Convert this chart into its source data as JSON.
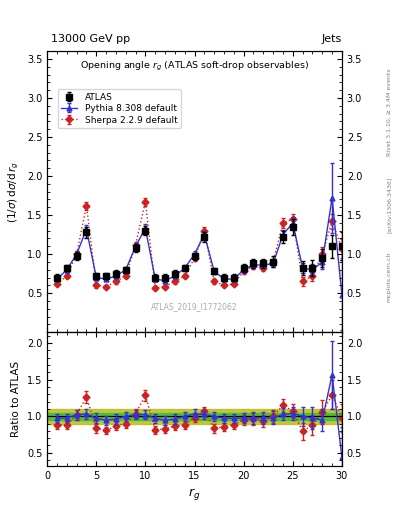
{
  "title_top_left": "13000 GeV pp",
  "title_top_right": "Jets",
  "plot_title": "Opening angle $r_g$ (ATLAS soft-drop observables)",
  "ylabel_main": "(1/σ) dσ/d r_g",
  "ylabel_ratio": "Ratio to ATLAS",
  "xlabel": "r_g",
  "watermark": "ATLAS_2019_I1772062",
  "rivet_text": "Rivet 3.1.10, ≥ 3.4M events",
  "arxiv_text": "[arXiv:1306.3436]",
  "mcplots_text": "mcplots.cern.ch",
  "x": [
    1,
    2,
    3,
    4,
    5,
    6,
    7,
    8,
    9,
    10,
    11,
    12,
    13,
    14,
    15,
    16,
    17,
    18,
    19,
    20,
    21,
    22,
    23,
    24,
    25,
    26,
    27,
    28,
    29,
    30
  ],
  "atlas_y": [
    0.7,
    0.82,
    0.98,
    1.28,
    0.72,
    0.72,
    0.75,
    0.8,
    1.08,
    1.3,
    0.7,
    0.7,
    0.75,
    0.82,
    0.97,
    1.22,
    0.78,
    0.7,
    0.7,
    0.82,
    0.88,
    0.88,
    0.9,
    1.22,
    1.35,
    0.82,
    0.82,
    0.95,
    1.1,
    1.1
  ],
  "atlas_yerr": [
    0.04,
    0.04,
    0.05,
    0.07,
    0.04,
    0.04,
    0.04,
    0.04,
    0.05,
    0.06,
    0.04,
    0.04,
    0.04,
    0.04,
    0.05,
    0.06,
    0.04,
    0.04,
    0.04,
    0.05,
    0.06,
    0.06,
    0.07,
    0.08,
    0.1,
    0.09,
    0.1,
    0.12,
    0.15,
    0.18
  ],
  "pythia_y": [
    0.68,
    0.8,
    1.0,
    1.32,
    0.7,
    0.68,
    0.72,
    0.8,
    1.1,
    1.33,
    0.68,
    0.66,
    0.72,
    0.82,
    1.0,
    1.25,
    0.78,
    0.68,
    0.68,
    0.8,
    0.86,
    0.86,
    0.88,
    1.25,
    1.4,
    0.82,
    0.8,
    0.9,
    1.72,
    0.48
  ],
  "pythia_yerr": [
    0.02,
    0.03,
    0.04,
    0.05,
    0.03,
    0.02,
    0.03,
    0.03,
    0.04,
    0.05,
    0.02,
    0.02,
    0.03,
    0.03,
    0.04,
    0.05,
    0.03,
    0.02,
    0.02,
    0.03,
    0.04,
    0.04,
    0.04,
    0.06,
    0.07,
    0.06,
    0.07,
    0.09,
    0.45,
    0.45
  ],
  "sherpa_y": [
    0.62,
    0.72,
    1.0,
    1.62,
    0.6,
    0.58,
    0.65,
    0.72,
    1.12,
    1.67,
    0.57,
    0.58,
    0.65,
    0.72,
    0.95,
    1.3,
    0.65,
    0.6,
    0.62,
    0.78,
    0.85,
    0.82,
    0.9,
    1.4,
    1.45,
    0.65,
    0.72,
    1.0,
    1.42,
    1.07
  ],
  "sherpa_yerr": [
    0.02,
    0.03,
    0.04,
    0.05,
    0.03,
    0.02,
    0.03,
    0.03,
    0.04,
    0.05,
    0.02,
    0.02,
    0.03,
    0.03,
    0.04,
    0.05,
    0.03,
    0.02,
    0.02,
    0.03,
    0.04,
    0.04,
    0.04,
    0.06,
    0.07,
    0.06,
    0.07,
    0.09,
    0.1,
    0.12
  ],
  "atlas_color": "#000000",
  "pythia_color": "#3333cc",
  "sherpa_color": "#cc2222",
  "main_ylim": [
    0.0,
    3.6
  ],
  "main_yticks": [
    0.5,
    1.0,
    1.5,
    2.0,
    2.5,
    3.0,
    3.5
  ],
  "ratio_ylim": [
    0.32,
    2.15
  ],
  "ratio_yticks": [
    0.5,
    1.0,
    1.5,
    2.0
  ],
  "xlim": [
    0,
    30
  ],
  "xticks": [
    0,
    5,
    10,
    15,
    20,
    25,
    30
  ],
  "green_band_halfwidth": 0.05,
  "yellow_band_halfwidth": 0.1,
  "green_color": "#44bb44",
  "yellow_color": "#bbbb22"
}
